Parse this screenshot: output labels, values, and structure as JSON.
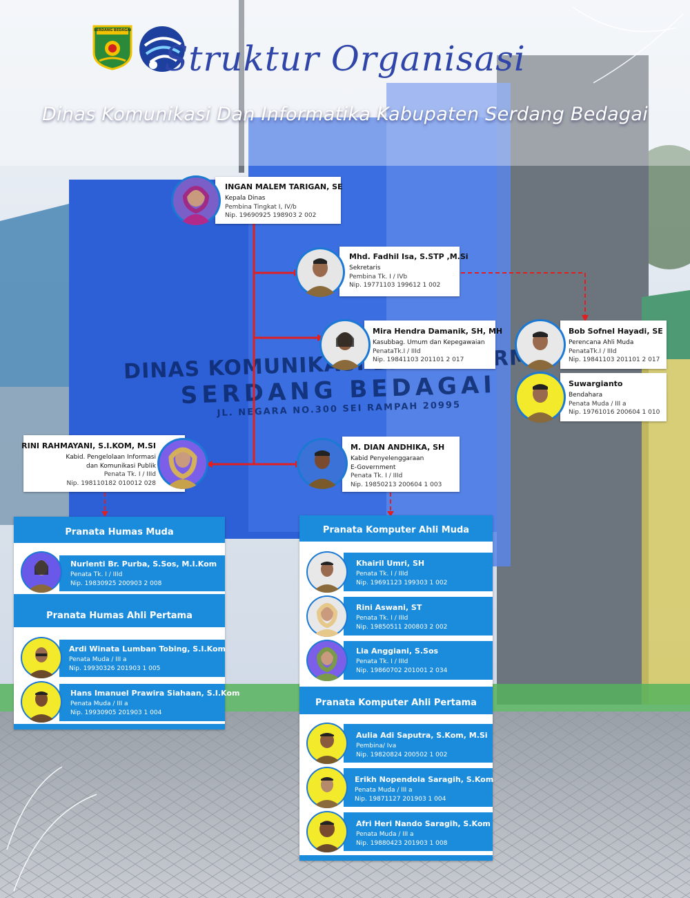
{
  "header": {
    "title": "Struktur Organisasi",
    "subtitle": "Dinas Komunikasi Dan Informatika Kabupaten Serdang Bedagai",
    "logo_left_text": "SERDANG BEDAGAI",
    "logo_left_icon": "regency-crest-icon",
    "logo_right_icon": "kominfo-logo-icon"
  },
  "building_sign": {
    "line1": "DINAS KOMUNIKASI DAN INFORMATIKA",
    "line2": "SERDANG  BEDAGAI",
    "line3": "JL. NEGARA NO.300 SEI RAMPAH 20995"
  },
  "kepala": {
    "name": "INGAN MALEM TARIGAN, SE",
    "role": "Kepala Dinas",
    "rank": "Pembina Tingkat I, IV/b",
    "nip": "Nip. 19690925 198903 2 002"
  },
  "sekretaris": {
    "name": "Mhd. Fadhil Isa, S.STP ,M.Si",
    "role": "Sekretaris",
    "rank": "Pembina Tk. I / IVb",
    "nip": "Nip. 19771103 199612 1 002"
  },
  "kasubbag": {
    "name": "Mira Hendra Damanik, SH, MH",
    "role": "Kasubbag. Umum dan Kepegawaian",
    "rank": "PenataTk.I / IIId",
    "nip": "Nip. 19841103 201101 2 017"
  },
  "perencana": {
    "name": "Bob Sofnel Hayadi, SE",
    "role": "Perencana Ahli Muda",
    "rank": "PenataTk.I / IIId",
    "nip": "Nip. 19841103 201101 2 017"
  },
  "bendahara": {
    "name": "Suwargianto",
    "role": "Bendahara",
    "rank": "Penata Muda / III a",
    "nip": "Nip. 19761016 200604 1 010"
  },
  "kabid_ikp": {
    "name": "RINI RAHMAYANI, S.I.KOM, M.SI",
    "role1": "Kabid. Pengelolaan Informasi",
    "role2": "dan Komunikasi Publik",
    "rank": "Penata Tk. I / IIId",
    "nip": "Nip. 198110182 010012 028"
  },
  "kabid_egov": {
    "name": "M. DIAN ANDHIKA, SH",
    "role1": "Kabid Penyelenggaraan",
    "role2": "E-Government",
    "rank": "Penata Tk. I / IIId",
    "nip": "Nip. 19850213 200604 1 003"
  },
  "humas_muda": {
    "title": "Pranata Humas Muda",
    "members": [
      {
        "name": "Nurlenti Br. Purba, S.Sos, M.I.Kom",
        "rank": "Penata Tk. I / IIId",
        "nip": "Nip. 19830925 200903 2 008"
      }
    ]
  },
  "humas_pertama": {
    "title": "Pranata Humas Ahli Pertama",
    "members": [
      {
        "name": "Ardi Winata Lumban Tobing, S.I.Kom",
        "rank": "Penata Muda / III a",
        "nip": "Nip. 19930326 201903 1 005"
      },
      {
        "name": "Hans Imanuel Prawira Siahaan, S.I.Kom",
        "rank": "Penata Muda / III a",
        "nip": "Nip. 19930905 201903 1 004"
      }
    ]
  },
  "komputer_muda": {
    "title": "Pranata Komputer Ahli Muda",
    "members": [
      {
        "name": "Khairil Umri, SH",
        "rank": "Penata Tk. I / IIId",
        "nip": "Nip. 19691123 199303 1 002"
      },
      {
        "name": "Rini Aswani, ST",
        "rank": "Penata Tk. I / IIId",
        "nip": "Nip. 19850511 200803 2 002"
      },
      {
        "name": "Lia Anggiani, S.Sos",
        "rank": "Penata Tk. I / IIId",
        "nip": "Nip. 19860702 201001 2 034"
      }
    ]
  },
  "komputer_pertama": {
    "title": "Pranata Komputer Ahli Pertama",
    "members": [
      {
        "name": "Aulia Adi Saputra, S.Kom, M.Si",
        "rank": "Pembina/ Iva",
        "nip": "Nip. 19820824 200502 1 002"
      },
      {
        "name": "Erikh Nopendola Saragih, S.Kom",
        "rank": "Penata Muda / III a",
        "nip": "Nip. 19871127 201903 1 004"
      },
      {
        "name": "Afri Heri Nando Saragih, S.Kom",
        "rank": "Penata Muda / III a",
        "nip": "Nip. 19880423 201903 1 008"
      }
    ]
  },
  "colors": {
    "accent_blue": "#1b8bdc",
    "title_blue": "#2f45a8",
    "line_red": "#e02020"
  }
}
